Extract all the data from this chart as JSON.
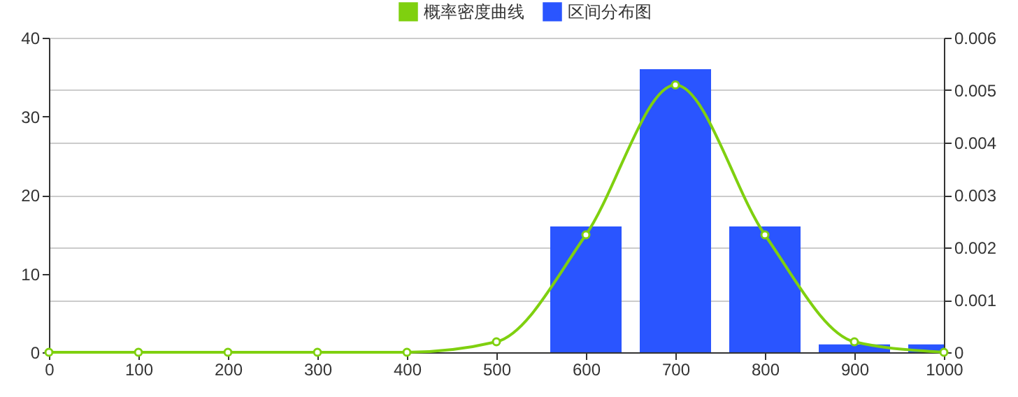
{
  "chart_data": {
    "type": "bar",
    "x": [
      0,
      100,
      200,
      300,
      400,
      500,
      600,
      700,
      800,
      900,
      1000
    ],
    "series": [
      {
        "name": "概率密度曲线",
        "type": "line",
        "axis": "y2",
        "color": "#7fd00f",
        "values": [
          0,
          0,
          0,
          0,
          0,
          0.0002,
          0.00224,
          0.0051,
          0.00224,
          0.0002,
          0
        ]
      },
      {
        "name": "区间分布图",
        "color": "#2a55ff",
        "values": [
          null,
          null,
          null,
          null,
          null,
          null,
          16,
          36,
          16,
          1,
          1
        ]
      }
    ],
    "xlim": [
      0,
      1000
    ],
    "xticks": [
      0,
      100,
      200,
      300,
      400,
      500,
      600,
      700,
      800,
      900,
      1000
    ],
    "ylim": [
      0,
      40
    ],
    "yticks": [
      0,
      10,
      20,
      30,
      40
    ],
    "y2lim": [
      0,
      0.006
    ],
    "y2ticks": [
      0,
      0.001,
      0.002,
      0.003,
      0.004,
      0.005,
      0.006
    ],
    "grid": "y",
    "legend": "top",
    "marker": "circle"
  }
}
